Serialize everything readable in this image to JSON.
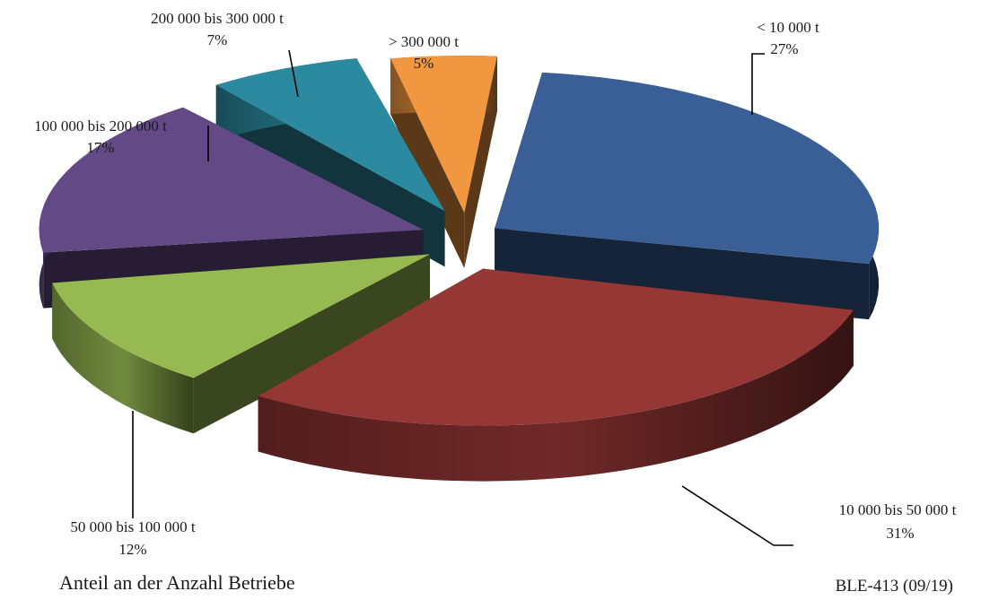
{
  "chart_data": {
    "type": "pie",
    "style": "3d-exploded",
    "slices": [
      {
        "label": "< 10 000 t",
        "pct_text": "27%",
        "value": 27,
        "color": "#3a5f96"
      },
      {
        "label": "10 000 bis 50 000 t",
        "pct_text": "31%",
        "value": 31,
        "color": "#953735"
      },
      {
        "label": "50 000 bis 100 000 t",
        "pct_text": "12%",
        "value": 12,
        "color": "#97b951"
      },
      {
        "label": "100 000 bis 200 000 t",
        "pct_text": "17%",
        "value": 17,
        "color": "#634a87"
      },
      {
        "label": "200 000 bis 300 000 t",
        "pct_text": "7%",
        "value": 7,
        "color": "#2c8aa0"
      },
      {
        "label": "> 300 000 t",
        "pct_text": "5%",
        "value": 5,
        "color": "#f0973f"
      }
    ]
  },
  "footer": {
    "caption": "Anteil an der Anzahl Betriebe",
    "source": "BLE-413 (09/19)"
  }
}
